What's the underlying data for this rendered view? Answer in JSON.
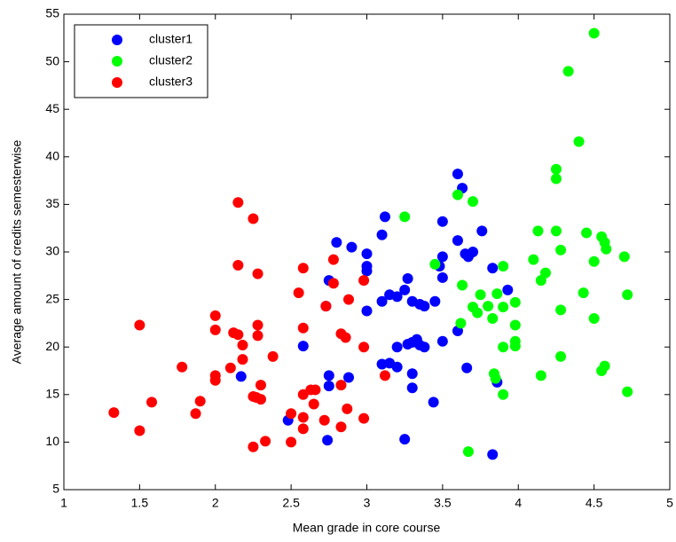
{
  "chart_data": {
    "type": "scatter",
    "x_label": "Mean grade in core course",
    "y_label": "Average amount of credits semesterwise",
    "xlim": [
      1,
      5
    ],
    "xticks": [
      1,
      1.5,
      2,
      2.5,
      3,
      3.5,
      4,
      4.5,
      5
    ],
    "ylim": [
      5,
      55
    ],
    "yticks": [
      5,
      10,
      15,
      20,
      25,
      30,
      35,
      40,
      45,
      50,
      55
    ],
    "legend": "upper-left",
    "series": [
      {
        "name": "cluster1",
        "color": "#0000ff",
        "x": [
          3.6,
          3.63,
          3.12,
          3.5,
          3.76,
          3.1,
          3.6,
          2.8,
          2.9,
          3.0,
          3.5,
          3.65,
          3.7,
          3.67,
          3.0,
          3.0,
          3.48,
          3.83,
          2.75,
          3.5,
          3.27,
          3.25,
          3.15,
          3.2,
          3.3,
          3.35,
          3.38,
          3.45,
          3.1,
          3.0,
          3.93,
          2.73,
          2.58,
          3.27,
          3.3,
          3.33,
          3.35,
          3.38,
          3.5,
          3.2,
          3.1,
          3.15,
          3.2,
          3.3,
          3.6,
          3.66,
          2.75,
          2.88,
          3.3,
          2.75,
          3.86,
          2.17,
          3.44,
          2.48,
          2.74,
          3.25,
          3.83
        ],
        "values": [
          38.2,
          36.7,
          33.7,
          33.2,
          32.2,
          31.8,
          31.2,
          31,
          30.5,
          29.8,
          29.5,
          29.8,
          30,
          29.5,
          28.5,
          28,
          28.5,
          28.3,
          27,
          27.3,
          27.2,
          26,
          25.5,
          25.3,
          24.8,
          24.5,
          24.3,
          24.8,
          24.8,
          23.8,
          26,
          24.3,
          20.1,
          20.3,
          20.5,
          20.8,
          20.2,
          20,
          20.6,
          20,
          18.2,
          18.3,
          17.9,
          17.2,
          21.7,
          17.8,
          17,
          16.8,
          15.7,
          15.9,
          16.3,
          16.9,
          14.2,
          12.3,
          10.2,
          10.3,
          8.7
        ]
      },
      {
        "name": "cluster2",
        "color": "#00ff00",
        "x": [
          4.5,
          4.33,
          4.4,
          4.25,
          4.25,
          3.6,
          3.7,
          4.13,
          4.25,
          4.45,
          4.55,
          4.57,
          4.58,
          4.28,
          4.1,
          4.5,
          4.7,
          3.45,
          3.9,
          3.25,
          4.18,
          4.15,
          3.63,
          3.75,
          3.86,
          4.43,
          4.72,
          3.8,
          3.7,
          3.73,
          3.9,
          3.98,
          4.28,
          4.5,
          3.62,
          3.83,
          3.98,
          3.98,
          3.98,
          3.9,
          4.28,
          4.55,
          4.57,
          4.15,
          3.84,
          3.85,
          3.9,
          4.72,
          3.67
        ],
        "values": [
          53,
          49,
          41.6,
          38.7,
          37.7,
          36,
          35.3,
          32.2,
          32.2,
          32,
          31.6,
          31,
          30.3,
          30.2,
          29.2,
          29,
          29.5,
          28.7,
          28.5,
          33.7,
          27.8,
          27,
          26.5,
          25.5,
          25.6,
          25.7,
          25.5,
          24.3,
          24.2,
          23.6,
          24.2,
          24.7,
          23.9,
          23,
          22.5,
          23,
          22.3,
          20.6,
          20.1,
          20,
          19,
          17.5,
          18,
          17,
          17.2,
          16.7,
          15,
          15.3,
          9
        ]
      },
      {
        "name": "cluster3",
        "color": "#ff0000",
        "x": [
          2.15,
          2.25,
          2.78,
          2.15,
          2.28,
          2.98,
          2.58,
          2.78,
          2.55,
          2.88,
          2.73,
          2.0,
          2.28,
          1.5,
          2.58,
          2.0,
          2.12,
          2.15,
          2.28,
          2.83,
          2.86,
          2.18,
          2.18,
          2.38,
          2.98,
          1.78,
          2.1,
          2.0,
          2.0,
          2.3,
          2.63,
          2.66,
          2.58,
          2.83,
          3.12,
          2.58,
          2.65,
          2.27,
          2.3,
          2.25,
          1.9,
          1.58,
          1.87,
          1.33,
          2.5,
          2.87,
          2.58,
          2.72,
          2.83,
          2.98,
          1.5,
          2.33,
          2.5,
          2.25
        ],
        "values": [
          35.2,
          33.5,
          29.2,
          28.6,
          27.7,
          27,
          28.3,
          26.7,
          25.7,
          25,
          24.3,
          23.3,
          22.3,
          22.3,
          22,
          21.8,
          21.5,
          21.3,
          21.2,
          21.4,
          21,
          20.2,
          18.7,
          19,
          20,
          17.9,
          17.8,
          17,
          16.5,
          16,
          15.5,
          15.5,
          15,
          16,
          17,
          12.6,
          14,
          14.7,
          14.5,
          14.8,
          14.3,
          14.2,
          13,
          13.1,
          13,
          13.5,
          11.4,
          12.3,
          11.6,
          12.5,
          11.2,
          10.1,
          10,
          9.5
        ]
      }
    ]
  }
}
